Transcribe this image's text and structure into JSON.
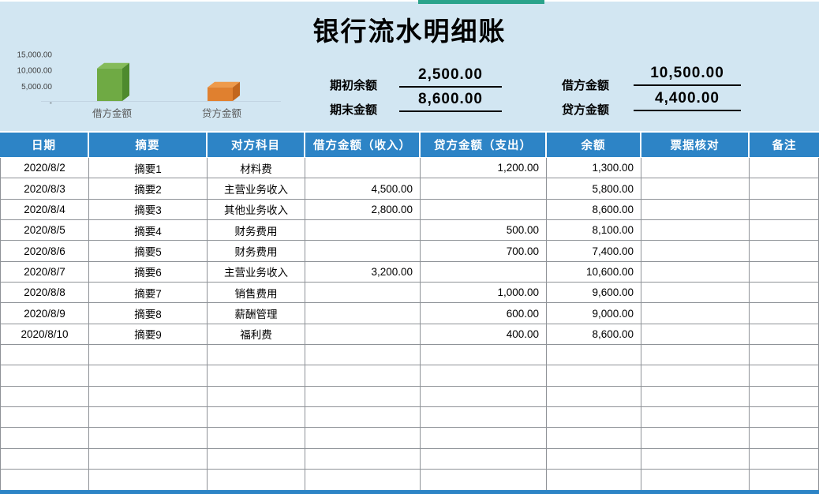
{
  "title": "银行流水明细账",
  "colors": {
    "band_blue": "#d2e6f2",
    "header_blue": "#2d84c6",
    "accent_green": "#2aa38b",
    "grid_line": "#8e9297",
    "bar_green": "#6faa44",
    "bar_orange": "#e0802f"
  },
  "chart_data": {
    "type": "bar",
    "style": "3d-column",
    "categories": [
      "借方金额",
      "贷方金额"
    ],
    "values": [
      10500,
      4400
    ],
    "bar_colors": [
      "#6faa44",
      "#e0802f"
    ],
    "bar_colors_top": [
      "#85bb5a",
      "#ee9a4b"
    ],
    "bar_colors_side": [
      "#4e8a2e",
      "#c2661d"
    ],
    "ytick_labels": [
      "15,000.00",
      "10,000.00",
      "5,000.00",
      "-"
    ],
    "ylim": [
      0,
      15000
    ],
    "grid": false,
    "legend_position": "below-bars",
    "title": "",
    "xlabel": "",
    "ylabel": ""
  },
  "summary": {
    "items": [
      {
        "label": "期初余额",
        "value": "2,500.00"
      },
      {
        "label": "期末金额",
        "value": "8,600.00"
      },
      {
        "label": "借方金额",
        "value": "10,500.00"
      },
      {
        "label": "贷方金额",
        "value": "4,400.00"
      }
    ]
  },
  "table": {
    "columns": [
      {
        "label": "日期",
        "align": "center"
      },
      {
        "label": "摘要",
        "align": "center"
      },
      {
        "label": "对方科目",
        "align": "center"
      },
      {
        "label": "借方金额（收入）",
        "align": "right"
      },
      {
        "label": "贷方金额（支出）",
        "align": "right"
      },
      {
        "label": "余额",
        "align": "right"
      },
      {
        "label": "票据核对",
        "align": "center"
      },
      {
        "label": "备注",
        "align": "center"
      }
    ],
    "rows": [
      [
        "2020/8/2",
        "摘要1",
        "材料费",
        "",
        "1,200.00",
        "1,300.00",
        "",
        ""
      ],
      [
        "2020/8/3",
        "摘要2",
        "主营业务收入",
        "4,500.00",
        "",
        "5,800.00",
        "",
        ""
      ],
      [
        "2020/8/4",
        "摘要3",
        "其他业务收入",
        "2,800.00",
        "",
        "8,600.00",
        "",
        ""
      ],
      [
        "2020/8/5",
        "摘要4",
        "财务费用",
        "",
        "500.00",
        "8,100.00",
        "",
        ""
      ],
      [
        "2020/8/6",
        "摘要5",
        "财务费用",
        "",
        "700.00",
        "7,400.00",
        "",
        ""
      ],
      [
        "2020/8/7",
        "摘要6",
        "主营业务收入",
        "3,200.00",
        "",
        "10,600.00",
        "",
        ""
      ],
      [
        "2020/8/8",
        "摘要7",
        "销售费用",
        "",
        "1,000.00",
        "9,600.00",
        "",
        ""
      ],
      [
        "2020/8/9",
        "摘要8",
        "薪酬管理",
        "",
        "600.00",
        "9,000.00",
        "",
        ""
      ],
      [
        "2020/8/10",
        "摘要9",
        "福利费",
        "",
        "400.00",
        "8,600.00",
        "",
        ""
      ]
    ],
    "empty_row_count": 7
  }
}
